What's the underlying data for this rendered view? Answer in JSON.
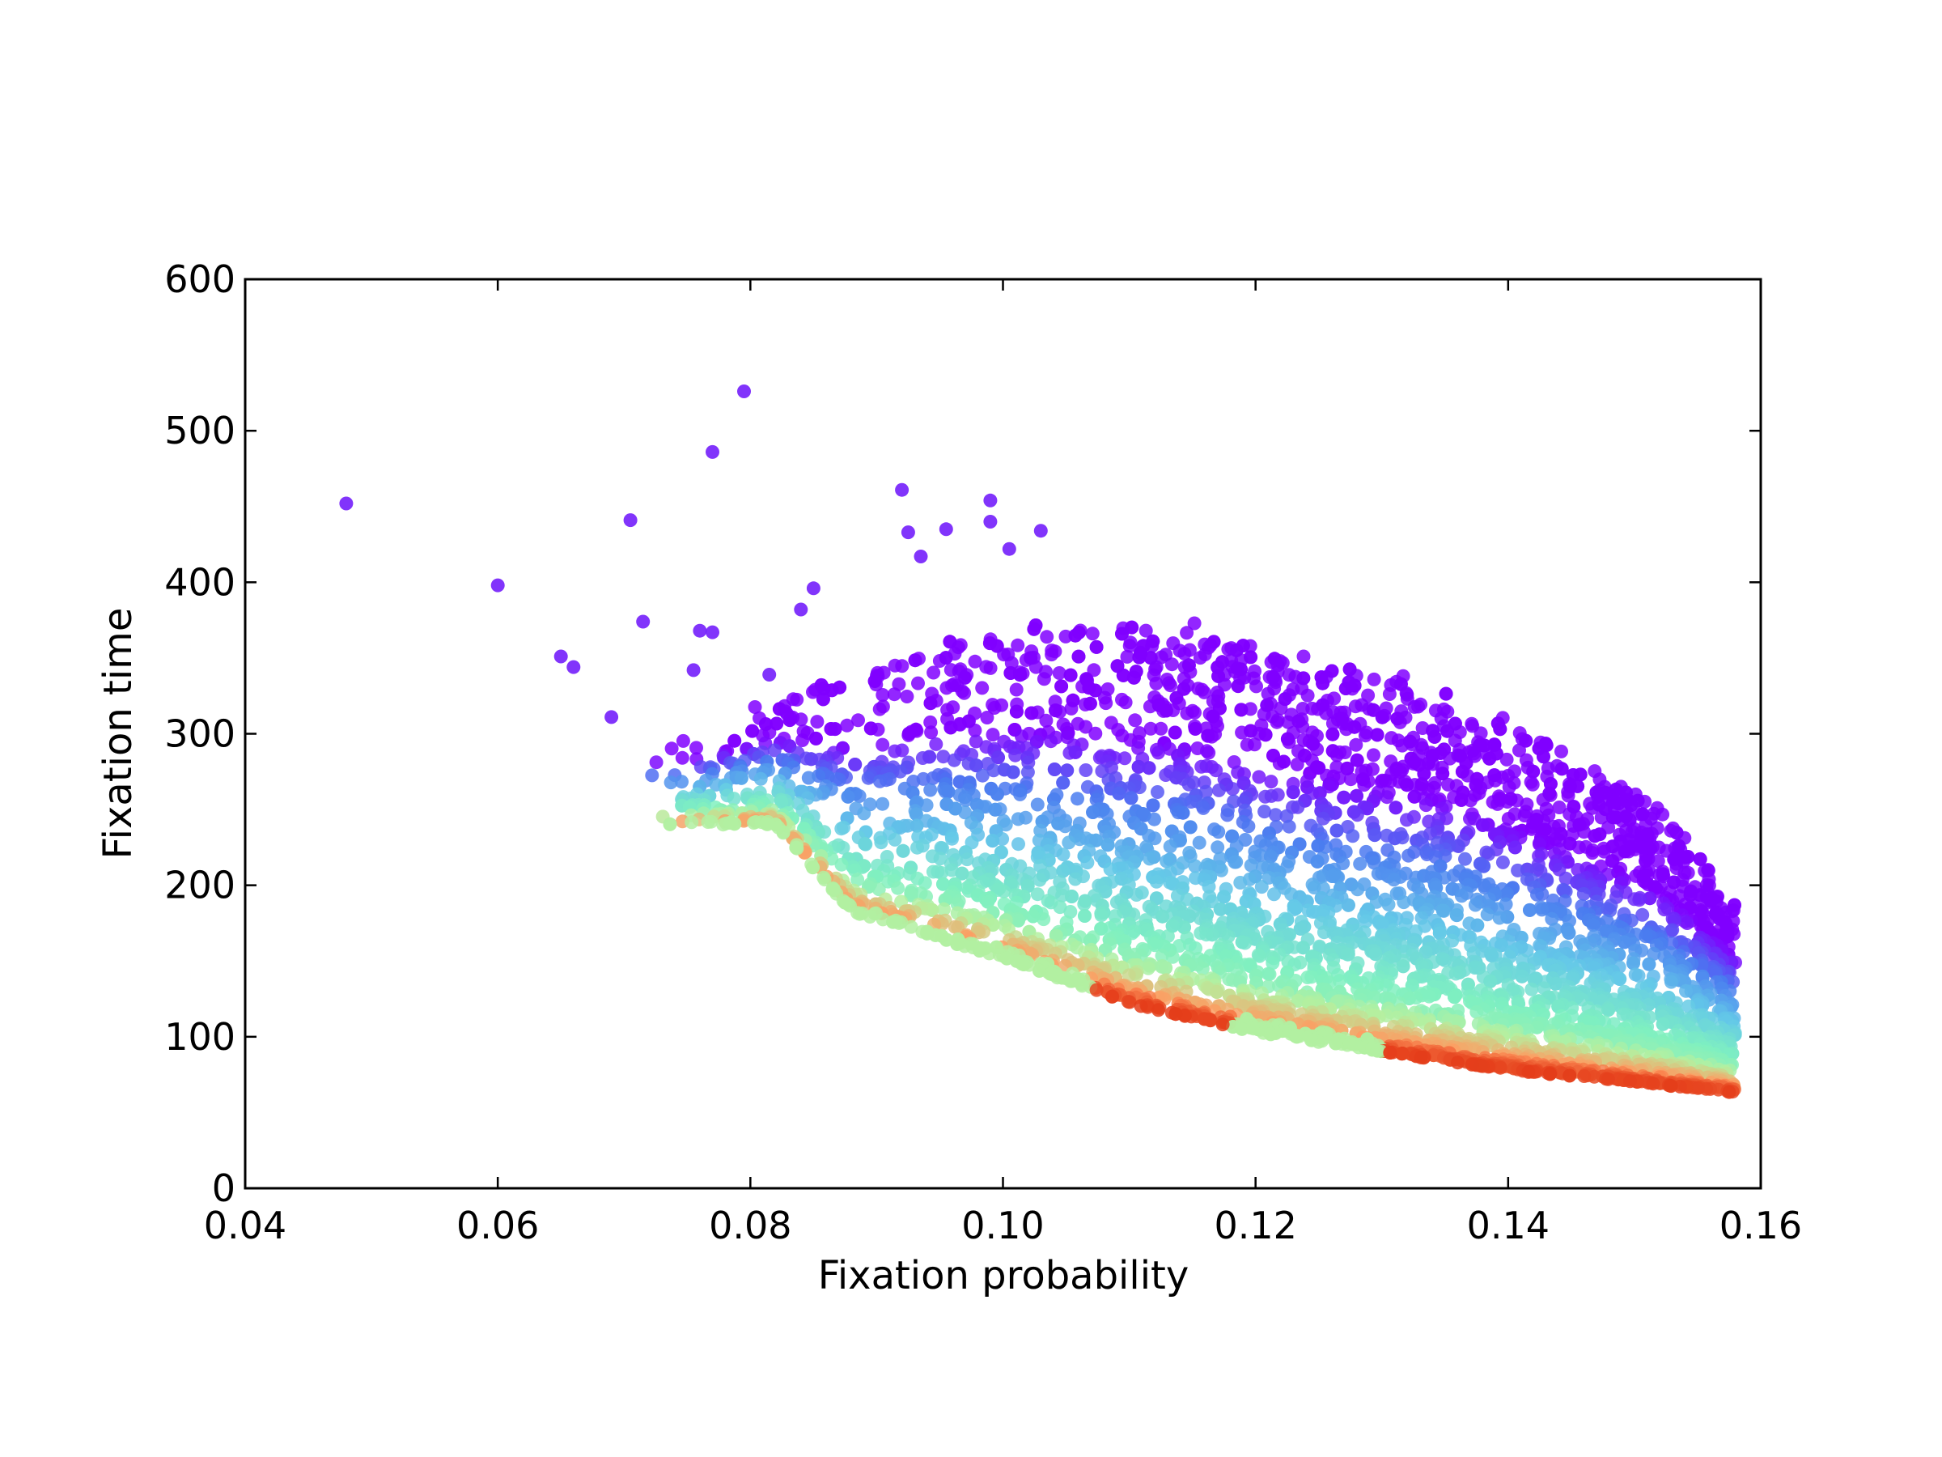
{
  "chart_data": {
    "type": "scatter",
    "title": "",
    "xlabel": "Fixation probability",
    "ylabel": "Fixation time",
    "xlim": [
      0.04,
      0.16
    ],
    "ylim": [
      0,
      600
    ],
    "xticks": [
      "0.04",
      "0.06",
      "0.08",
      "0.10",
      "0.12",
      "0.14",
      "0.16"
    ],
    "yticks": [
      "0",
      "100",
      "200",
      "300",
      "400",
      "500",
      "600"
    ],
    "grid": false,
    "legend": "none",
    "colormap": "rainbow",
    "colormap_stops": [
      "#8000ff",
      "#4a7bf0",
      "#64c8e8",
      "#7ff0c0",
      "#b4f0a0",
      "#ff9a60",
      "#e03010"
    ],
    "point_count_estimate": 12000,
    "outliers": [
      {
        "x": 0.048,
        "y": 452
      },
      {
        "x": 0.06,
        "y": 398
      },
      {
        "x": 0.065,
        "y": 351
      },
      {
        "x": 0.066,
        "y": 344
      },
      {
        "x": 0.069,
        "y": 311
      },
      {
        "x": 0.0705,
        "y": 441
      },
      {
        "x": 0.0715,
        "y": 374
      },
      {
        "x": 0.0755,
        "y": 342
      },
      {
        "x": 0.076,
        "y": 368
      },
      {
        "x": 0.077,
        "y": 486
      },
      {
        "x": 0.077,
        "y": 367
      },
      {
        "x": 0.0795,
        "y": 526
      },
      {
        "x": 0.0815,
        "y": 339
      },
      {
        "x": 0.092,
        "y": 461
      },
      {
        "x": 0.0925,
        "y": 433
      },
      {
        "x": 0.0935,
        "y": 417
      },
      {
        "x": 0.0955,
        "y": 435
      },
      {
        "x": 0.099,
        "y": 454
      },
      {
        "x": 0.099,
        "y": 440
      },
      {
        "x": 0.1005,
        "y": 422
      },
      {
        "x": 0.103,
        "y": 434
      },
      {
        "x": 0.085,
        "y": 396
      },
      {
        "x": 0.084,
        "y": 382
      }
    ],
    "bulk_envelope": {
      "x_range": [
        0.072,
        0.158
      ],
      "lower_boundary": [
        [
          0.082,
          240
        ],
        [
          0.088,
          182
        ],
        [
          0.1,
          152
        ],
        [
          0.11,
          122
        ],
        [
          0.12,
          103
        ],
        [
          0.13,
          90
        ],
        [
          0.14,
          78
        ],
        [
          0.15,
          70
        ],
        [
          0.158,
          63
        ]
      ],
      "upper_boundary": [
        [
          0.075,
          300
        ],
        [
          0.085,
          330
        ],
        [
          0.095,
          360
        ],
        [
          0.105,
          370
        ],
        [
          0.115,
          370
        ],
        [
          0.125,
          345
        ],
        [
          0.135,
          330
        ],
        [
          0.145,
          285
        ],
        [
          0.152,
          250
        ],
        [
          0.158,
          190
        ]
      ]
    },
    "color_trend": "points near the lower boundary are red/orange/green; color shifts to cyan, blue and purple as y rises above the lower boundary"
  }
}
